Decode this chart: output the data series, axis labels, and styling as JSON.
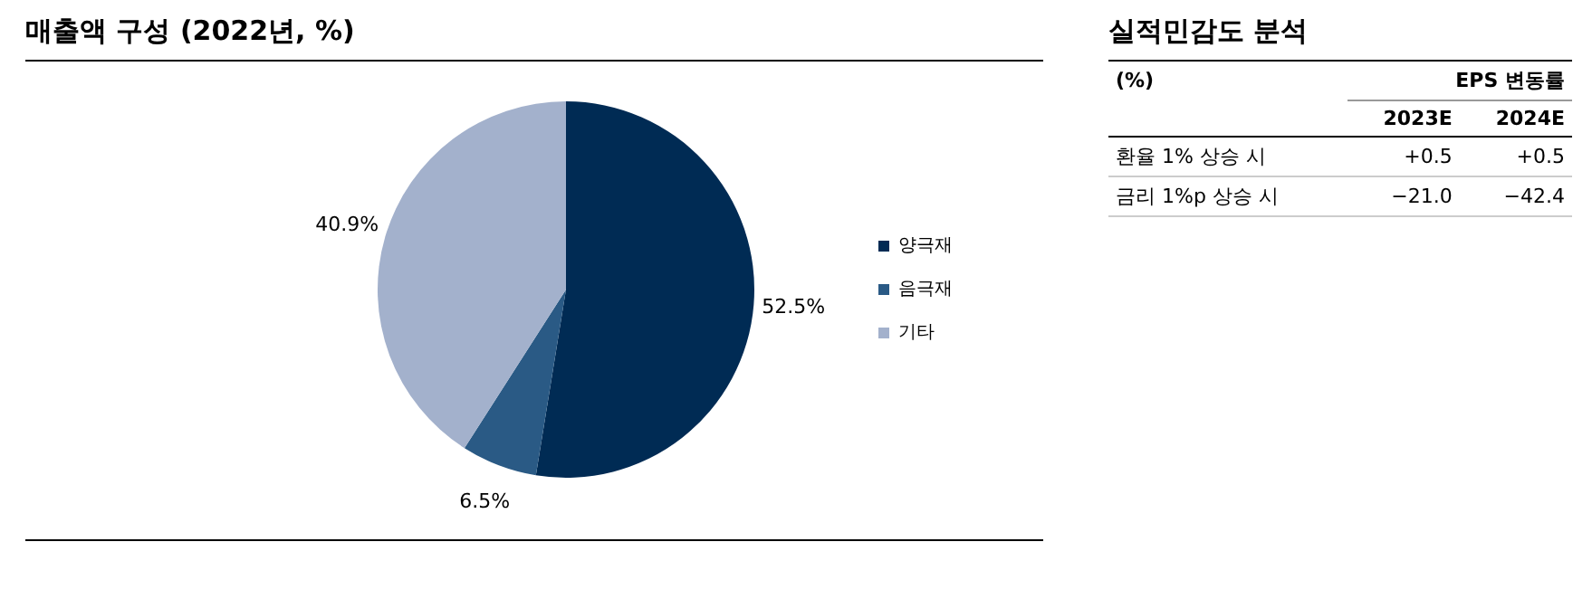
{
  "chart_data": [
    {
      "type": "pie",
      "title": "매출액 구성 (2022년, %)",
      "categories": [
        "양극재",
        "음극재",
        "기타"
      ],
      "values": [
        52.5,
        6.5,
        40.9
      ],
      "colors": [
        "#002b54",
        "#2a5a85",
        "#a3b1cc"
      ],
      "value_labels": [
        "52.5%",
        "6.5%",
        "40.9%"
      ],
      "legend": "right"
    },
    {
      "type": "other",
      "title": "실적민감도 분석",
      "ylabel": "(%)",
      "xlabel": "EPS 변동률",
      "categories": [
        "환율 1% 상승 시",
        "금리 1%p 상승 시"
      ],
      "data_labels": true,
      "series": [
        {
          "name": "2023E",
          "values": [
            0.5,
            -21.0
          ],
          "value_labels": [
            "+0.5",
            "−21.0"
          ]
        },
        {
          "name": "2024E",
          "values": [
            0.5,
            -42.4
          ],
          "value_labels": [
            "+0.5",
            "−42.4"
          ]
        }
      ]
    }
  ]
}
